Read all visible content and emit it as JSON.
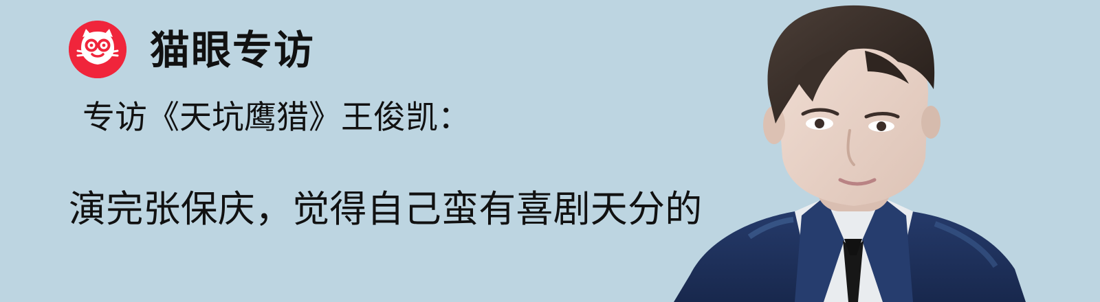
{
  "brand": {
    "name": "猫眼专访",
    "logo_icon": "cat-face-icon",
    "logo_color": "#f0253b"
  },
  "headline": {
    "line1": "专访《天坑鹰猎》王俊凯：",
    "line2": "演完张保庆，觉得自己蛮有喜剧天分的"
  },
  "colors": {
    "background": "#bdd5e1",
    "text": "#111111"
  }
}
